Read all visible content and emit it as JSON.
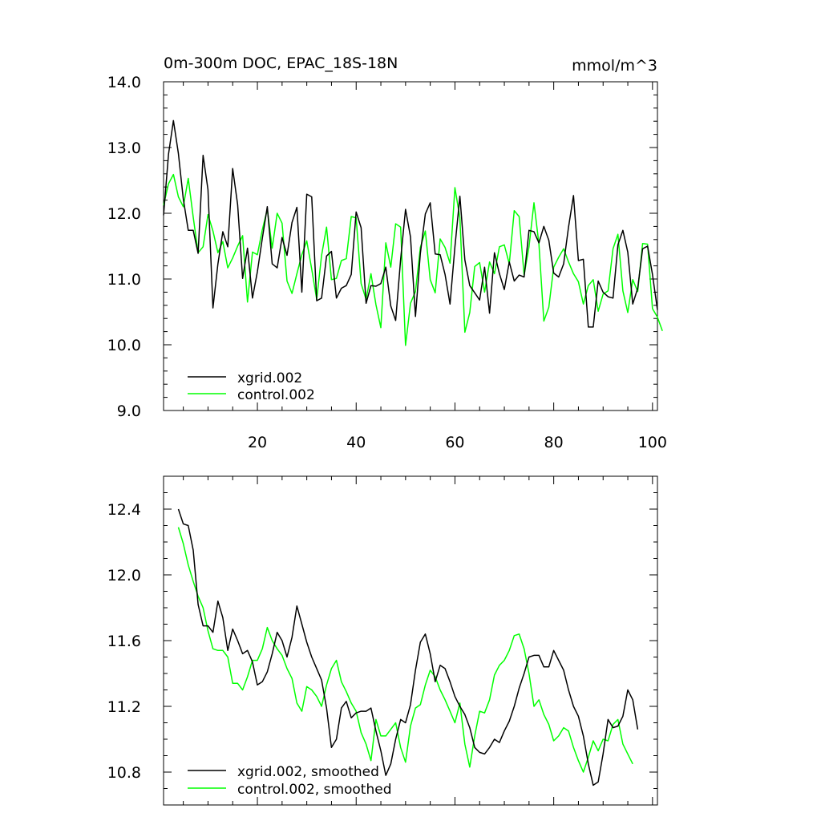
{
  "chart_data": [
    {
      "type": "line",
      "title": "0m-300m DOC, EPAC_18S-18N",
      "units": "mmol/m^3",
      "xlim": [
        1,
        101
      ],
      "ylim": [
        9.0,
        14.0
      ],
      "x_ticks": [
        20,
        40,
        60,
        80,
        100
      ],
      "y_ticks": [
        "9.0",
        "10.0",
        "11.0",
        "12.0",
        "13.0",
        "14.0"
      ],
      "legend_position": "bottom-left",
      "series": [
        {
          "name": "xgrid.002",
          "color": "#000000",
          "x_start": 1,
          "values": [
            11.97,
            12.9,
            13.41,
            12.91,
            12.22,
            11.74,
            11.74,
            11.39,
            12.88,
            12.36,
            10.56,
            11.23,
            11.72,
            11.49,
            12.68,
            12.13,
            11.01,
            11.47,
            10.71,
            11.11,
            11.62,
            12.1,
            11.23,
            11.17,
            11.63,
            11.36,
            11.86,
            12.09,
            10.8,
            12.29,
            12.25,
            10.67,
            10.71,
            11.35,
            11.42,
            10.71,
            10.86,
            10.9,
            11.07,
            12.02,
            11.78,
            10.63,
            10.9,
            10.89,
            10.93,
            11.18,
            10.59,
            10.37,
            11.3,
            12.06,
            11.64,
            10.43,
            11.39,
            11.99,
            12.16,
            11.38,
            11.37,
            11.07,
            10.62,
            11.49,
            12.26,
            11.29,
            10.9,
            10.79,
            10.68,
            11.18,
            10.48,
            11.4,
            11.08,
            10.84,
            11.26,
            10.97,
            11.06,
            11.03,
            11.74,
            11.72,
            11.55,
            11.8,
            11.59,
            11.09,
            11.03,
            11.23,
            11.79,
            12.27,
            11.28,
            11.3,
            10.27,
            10.27,
            10.97,
            10.8,
            10.73,
            10.71,
            11.52,
            11.74,
            11.41,
            10.62,
            10.86,
            11.46,
            11.5,
            11.07,
            10.53
          ]
        },
        {
          "name": "control.002",
          "color": "#00ff00",
          "x_start": 1,
          "values": [
            12.12,
            12.45,
            12.59,
            12.25,
            12.1,
            12.53,
            11.94,
            11.4,
            11.49,
            11.98,
            11.73,
            11.4,
            11.57,
            11.17,
            11.32,
            11.5,
            11.66,
            10.65,
            11.41,
            11.37,
            11.75,
            12.06,
            11.47,
            12.0,
            11.85,
            10.97,
            10.78,
            11.08,
            11.37,
            11.58,
            11.15,
            10.69,
            11.36,
            11.79,
            10.99,
            11.01,
            11.28,
            11.31,
            11.95,
            11.93,
            10.93,
            10.69,
            11.08,
            10.61,
            10.26,
            11.55,
            11.18,
            11.84,
            11.79,
            9.99,
            10.63,
            10.81,
            11.48,
            11.73,
            10.99,
            10.79,
            11.61,
            11.48,
            11.24,
            12.39,
            11.93,
            10.19,
            10.49,
            11.19,
            11.25,
            10.8,
            11.26,
            11.08,
            11.49,
            11.52,
            11.23,
            12.04,
            11.95,
            11.06,
            11.49,
            12.16,
            11.53,
            10.36,
            10.57,
            11.18,
            11.33,
            11.46,
            11.26,
            11.08,
            10.96,
            10.62,
            10.9,
            10.99,
            10.51,
            10.77,
            10.82,
            11.46,
            11.68,
            10.82,
            10.49,
            10.99,
            10.81,
            11.54,
            11.53,
            10.55,
            10.42,
            10.21
          ]
        }
      ]
    },
    {
      "type": "line",
      "title": "",
      "xlim": [
        1,
        101
      ],
      "ylim": [
        10.6,
        12.6
      ],
      "y_ticks": [
        "10.8",
        "11.2",
        "11.6",
        "12.0",
        "12.4"
      ],
      "legend_position": "bottom-left",
      "series": [
        {
          "name": "xgrid.002, smoothed",
          "color": "#000000",
          "x_start": 4,
          "values": [
            12.4,
            12.31,
            12.3,
            12.15,
            11.82,
            11.69,
            11.69,
            11.65,
            11.84,
            11.74,
            11.54,
            11.67,
            11.6,
            11.52,
            11.54,
            11.47,
            11.33,
            11.35,
            11.41,
            11.52,
            11.65,
            11.6,
            11.5,
            11.62,
            11.81,
            11.7,
            11.59,
            11.5,
            11.43,
            11.36,
            11.19,
            10.95,
            11.0,
            11.19,
            11.23,
            11.13,
            11.16,
            11.17,
            11.17,
            11.19,
            11.05,
            10.93,
            10.78,
            10.85,
            11.0,
            11.12,
            11.1,
            11.21,
            11.42,
            11.59,
            11.64,
            11.52,
            11.35,
            11.45,
            11.43,
            11.35,
            11.26,
            11.2,
            11.15,
            11.07,
            10.95,
            10.92,
            10.91,
            10.95,
            11.0,
            10.98,
            11.05,
            11.11,
            11.2,
            11.31,
            11.4,
            11.5,
            11.51,
            11.51,
            11.44,
            11.44,
            11.54,
            11.48,
            11.42,
            11.3,
            11.2,
            11.14,
            11.02,
            10.85,
            10.72,
            10.74,
            10.91,
            11.12,
            11.07,
            11.08,
            11.14,
            11.3,
            11.24,
            11.06
          ]
        },
        {
          "name": "control.002, smoothed",
          "color": "#00ff00",
          "x_start": 4,
          "values": [
            12.29,
            12.19,
            12.06,
            11.96,
            11.87,
            11.8,
            11.66,
            11.55,
            11.54,
            11.54,
            11.5,
            11.34,
            11.34,
            11.3,
            11.38,
            11.48,
            11.48,
            11.55,
            11.68,
            11.6,
            11.55,
            11.51,
            11.43,
            11.37,
            11.22,
            11.17,
            11.32,
            11.3,
            11.26,
            11.2,
            11.33,
            11.43,
            11.48,
            11.35,
            11.29,
            11.22,
            11.17,
            11.04,
            10.97,
            10.87,
            11.12,
            11.02,
            11.02,
            11.06,
            11.1,
            10.95,
            10.86,
            11.08,
            11.19,
            11.21,
            11.33,
            11.42,
            11.38,
            11.3,
            11.24,
            11.17,
            11.1,
            11.22,
            10.97,
            10.83,
            11.02,
            11.17,
            11.16,
            11.24,
            11.39,
            11.45,
            11.48,
            11.54,
            11.63,
            11.64,
            11.55,
            11.4,
            11.2,
            11.24,
            11.15,
            11.09,
            10.99,
            11.02,
            11.07,
            11.05,
            10.95,
            10.87,
            10.8,
            10.89,
            10.99,
            10.93,
            11.0,
            10.99,
            11.09,
            11.12,
            10.97,
            10.91,
            10.85
          ]
        }
      ]
    }
  ]
}
